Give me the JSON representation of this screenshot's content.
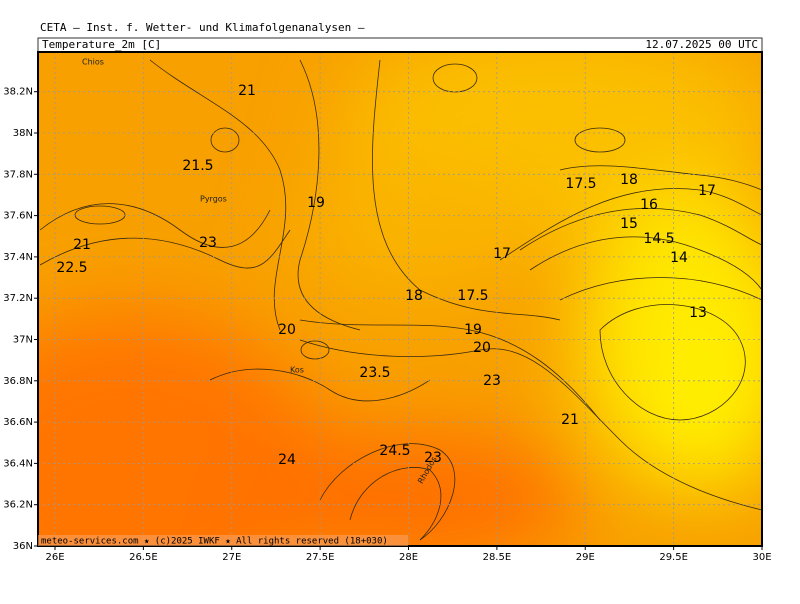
{
  "header": {
    "source": "CETA — Inst. f. Wetter- und Klimafolgenanalysen —",
    "variable": "Temperature_2m [C]",
    "time": "12.07.2025 00 UTC"
  },
  "map": {
    "lon_ticks": [
      {
        "value": 26,
        "label": "26E"
      },
      {
        "value": 26.5,
        "label": "26.5E"
      },
      {
        "value": 27,
        "label": "27E"
      },
      {
        "value": 27.5,
        "label": "27.5E"
      },
      {
        "value": 28,
        "label": "28E"
      },
      {
        "value": 28.5,
        "label": "28.5E"
      },
      {
        "value": 29,
        "label": "29E"
      },
      {
        "value": 29.5,
        "label": "29.5E"
      },
      {
        "value": 30,
        "label": "30E"
      }
    ],
    "lat_ticks": [
      {
        "value": 36,
        "label": "36N"
      },
      {
        "value": 36.2,
        "label": "36.2N"
      },
      {
        "value": 36.4,
        "label": "36.4N"
      },
      {
        "value": 36.6,
        "label": "36.6N"
      },
      {
        "value": 36.8,
        "label": "36.8N"
      },
      {
        "value": 37,
        "label": "37N"
      },
      {
        "value": 37.2,
        "label": "37.2N"
      },
      {
        "value": 37.4,
        "label": "37.4N"
      },
      {
        "value": 37.6,
        "label": "37.6N"
      },
      {
        "value": 37.8,
        "label": "37.8N"
      },
      {
        "value": 38,
        "label": "38N"
      },
      {
        "value": 38.2,
        "label": "38.2N"
      }
    ],
    "places": [
      "Chios",
      "Pyrgos",
      "Kos",
      "Rhodos"
    ],
    "contour_labels": [
      21,
      21.5,
      21,
      22.5,
      23,
      19,
      20,
      18,
      17.5,
      17,
      17.5,
      18,
      17,
      16,
      15,
      14.5,
      14,
      13,
      19,
      20,
      23.5,
      23,
      21,
      24.5,
      23,
      24
    ]
  },
  "footer": "meteo-services.com ★ (c)2025 IWKF ★ All rights reserved (18+030)"
}
